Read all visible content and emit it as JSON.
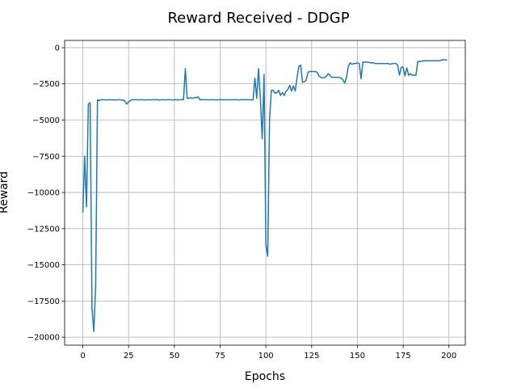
{
  "chart_data": {
    "type": "line",
    "title": "Reward Received - DDGP",
    "xlabel": "Epochs",
    "ylabel": "Reward",
    "x": [
      0,
      1,
      2,
      3,
      4,
      5,
      6,
      7,
      8,
      9,
      10,
      11,
      12,
      13,
      14,
      15,
      16,
      17,
      18,
      19,
      20,
      21,
      22,
      23,
      24,
      25,
      26,
      27,
      28,
      29,
      30,
      31,
      32,
      33,
      34,
      35,
      36,
      37,
      38,
      39,
      40,
      41,
      42,
      43,
      44,
      45,
      46,
      47,
      48,
      49,
      50,
      51,
      52,
      53,
      54,
      55,
      56,
      57,
      58,
      59,
      60,
      61,
      62,
      63,
      64,
      65,
      66,
      67,
      68,
      69,
      70,
      71,
      72,
      73,
      74,
      75,
      76,
      77,
      78,
      79,
      80,
      81,
      82,
      83,
      84,
      85,
      86,
      87,
      88,
      89,
      90,
      91,
      92,
      93,
      94,
      95,
      96,
      97,
      98,
      99,
      100,
      101,
      102,
      103,
      104,
      105,
      106,
      107,
      108,
      109,
      110,
      111,
      112,
      113,
      114,
      115,
      116,
      117,
      118,
      119,
      120,
      121,
      122,
      123,
      124,
      125,
      126,
      127,
      128,
      129,
      130,
      131,
      132,
      133,
      134,
      135,
      136,
      137,
      138,
      139,
      140,
      141,
      142,
      143,
      144,
      145,
      146,
      147,
      148,
      149,
      150,
      151,
      152,
      153,
      154,
      155,
      156,
      157,
      158,
      159,
      160,
      161,
      162,
      163,
      164,
      165,
      166,
      167,
      168,
      169,
      170,
      171,
      172,
      173,
      174,
      175,
      176,
      177,
      178,
      179,
      180,
      181,
      182,
      183,
      184,
      185,
      186,
      187,
      188,
      189,
      190,
      191,
      192,
      193,
      194,
      195,
      196,
      197,
      198,
      199
    ],
    "series": [
      {
        "name": "Reward",
        "color": "#1f77b4",
        "values": [
          -11400,
          -7500,
          -11000,
          -3900,
          -3800,
          -18000,
          -19600,
          -16500,
          -3600,
          -3650,
          -3600,
          -3600,
          -3600,
          -3620,
          -3600,
          -3600,
          -3610,
          -3600,
          -3620,
          -3600,
          -3600,
          -3620,
          -3610,
          -3700,
          -3900,
          -3750,
          -3650,
          -3600,
          -3600,
          -3600,
          -3600,
          -3610,
          -3600,
          -3600,
          -3620,
          -3600,
          -3600,
          -3610,
          -3600,
          -3600,
          -3600,
          -3600,
          -3620,
          -3600,
          -3600,
          -3610,
          -3600,
          -3600,
          -3600,
          -3620,
          -3600,
          -3600,
          -3610,
          -3600,
          -3600,
          -3600,
          -1450,
          -3500,
          -3500,
          -3450,
          -3500,
          -3450,
          -3450,
          -3400,
          -3600,
          -3600,
          -3600,
          -3600,
          -3600,
          -3610,
          -3600,
          -3600,
          -3600,
          -3620,
          -3600,
          -3600,
          -3600,
          -3610,
          -3600,
          -3600,
          -3600,
          -3610,
          -3600,
          -3600,
          -3600,
          -3620,
          -3600,
          -3600,
          -3600,
          -3600,
          -3600,
          -3600,
          -3610,
          -3600,
          -2100,
          -3500,
          -1450,
          -3500,
          -6300,
          -1850,
          -13600,
          -14400,
          -5000,
          -2950,
          -2950,
          -3150,
          -3100,
          -2950,
          -3300,
          -3100,
          -3300,
          -3000,
          -2900,
          -2600,
          -3000,
          -2650,
          -3000,
          -2100,
          -1300,
          -1200,
          -2400,
          -2350,
          -2250,
          -1700,
          -1650,
          -1650,
          -1650,
          -1650,
          -1700,
          -1950,
          -2050,
          -2100,
          -2050,
          -2000,
          -1800,
          -1900,
          -2050,
          -2050,
          -2050,
          -2050,
          -2050,
          -2100,
          -2200,
          -2450,
          -2100,
          -1300,
          -1050,
          -1150,
          -1100,
          -1100,
          -1050,
          -1100,
          -2150,
          -1000,
          -1000,
          -1000,
          -1000,
          -1050,
          -1050,
          -1050,
          -1100,
          -1100,
          -1100,
          -1100,
          -1100,
          -1100,
          -1100,
          -1100,
          -1150,
          -1100,
          -1100,
          -1100,
          -1200,
          -1900,
          -1350,
          -1350,
          -1950,
          -1400,
          -1900,
          -1800,
          -1900,
          -1900,
          -1900,
          -950,
          -950,
          -950,
          -900,
          -900,
          -900,
          -900,
          -900,
          -900,
          -900,
          -900,
          -900,
          -900,
          -850,
          -850,
          -850,
          -850
        ]
      }
    ],
    "xlim": [
      -9.95,
      208.95
    ],
    "xticks": [
      0,
      25,
      50,
      75,
      100,
      125,
      150,
      175,
      200
    ],
    "ylim": [
      -20550,
      500
    ],
    "yticks": [
      0,
      {
        "value": -2500,
        "label": "−2500"
      },
      {
        "value": -5000,
        "label": "−5000"
      },
      {
        "value": -7500,
        "label": "−7500"
      },
      {
        "value": -10000,
        "label": "−10000"
      },
      {
        "value": -12500,
        "label": "−12500"
      },
      {
        "value": -15000,
        "label": "−15000"
      },
      {
        "value": -17500,
        "label": "−17500"
      },
      {
        "value": -20000,
        "label": "−20000"
      }
    ],
    "grid": true
  }
}
